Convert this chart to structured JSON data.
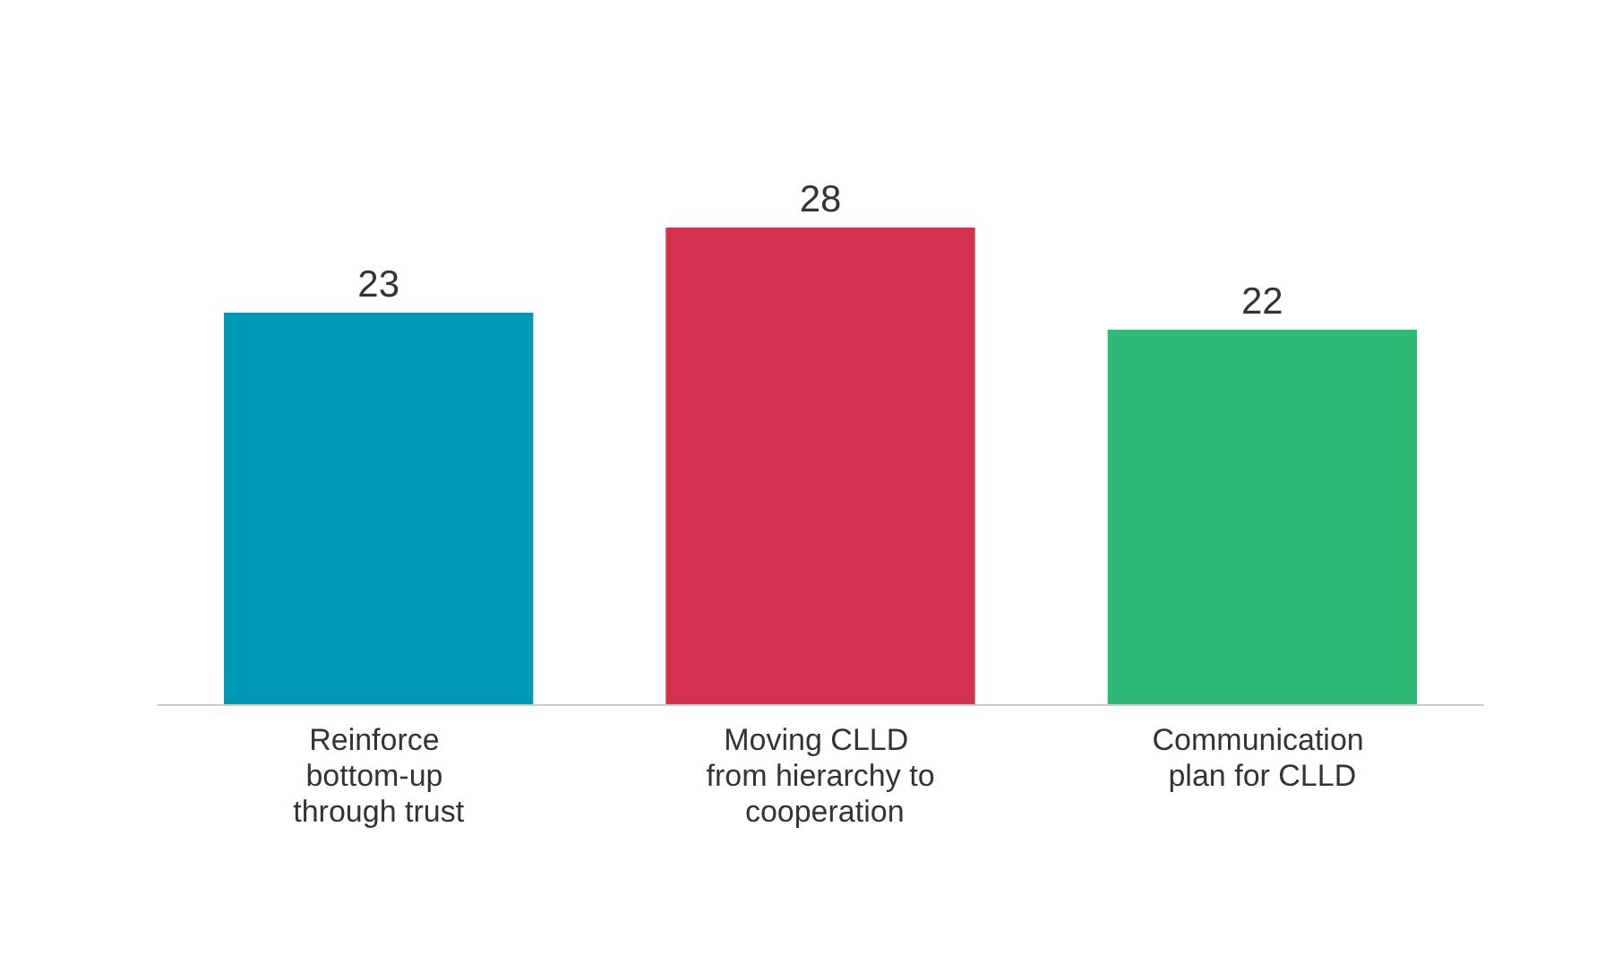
{
  "chart_data": {
    "type": "bar",
    "categories": [
      "Reinforce bottom-up through trust",
      "Moving CLLD from hierarchy to cooperation",
      "Communication plan for CLLD"
    ],
    "values": [
      23,
      28,
      22
    ],
    "colors": [
      "#0099b5",
      "#d2324e",
      "#2eba74"
    ],
    "data_labels": true
  }
}
